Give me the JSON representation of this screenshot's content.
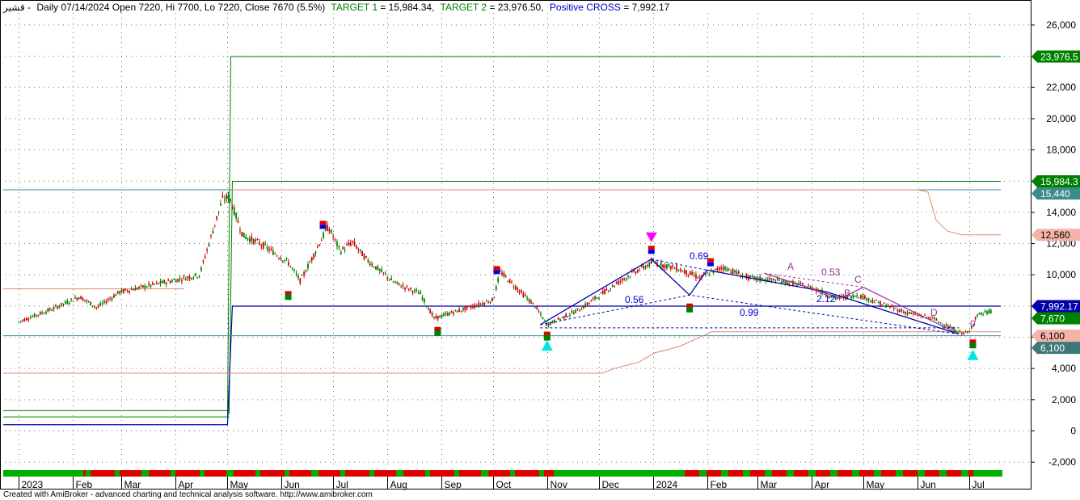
{
  "header": {
    "symbol": "قشير -",
    "info": "Daily 07/14/2024 Open 7220, Hi 7700, Lo 7220, Close 7670 (5.5%)",
    "target1_label": "TARGET 1",
    "target1_value": " = 15,984.34,",
    "target2_label": "TARGET 2",
    "target2_value": " = 23,976.50,",
    "cross_label": "Positive CROSS",
    "cross_value": "  = 7,992.17",
    "colors": {
      "info": "#000000",
      "target": "#008000",
      "cross": "#0000cc"
    }
  },
  "footer": "Created with AmiBroker - advanced charting and technical analysis software. http://www.amibroker.com",
  "chart_data": {
    "type": "line",
    "y_ticks": [
      "-2,000",
      "0",
      "2,000",
      "4,000",
      "6,000",
      "8,000",
      "10,000",
      "12,000",
      "14,000",
      "16,000",
      "18,000",
      "20,000",
      "22,000",
      "24,000",
      "26,000"
    ],
    "y_tick_values": [
      -2000,
      0,
      2000,
      4000,
      6000,
      8000,
      10000,
      12000,
      14000,
      16000,
      18000,
      20000,
      22000,
      24000,
      26000
    ],
    "ylim": [
      -3700,
      27600
    ],
    "x_ticks": [
      "2023",
      "Feb",
      "Mar",
      "Apr",
      "May",
      "Jun",
      "Jul",
      "Aug",
      "Sep",
      "Oct",
      "Nov",
      "Dec",
      "2024",
      "Feb",
      "Mar",
      "Apr",
      "May",
      "Jun",
      "Jul"
    ],
    "grid": true,
    "price": {
      "x": [
        "2023-01-01",
        "2023-01-20",
        "2023-02-05",
        "2023-02-15",
        "2023-02-28",
        "2023-04-15",
        "2023-04-28",
        "2023-05-02",
        "2023-05-10",
        "2023-05-20",
        "2023-06-05",
        "2023-06-12",
        "2023-06-28",
        "2023-07-05",
        "2023-07-12",
        "2023-07-20",
        "2023-08-05",
        "2023-08-20",
        "2023-08-28",
        "2023-09-05",
        "2023-09-20",
        "2023-10-01",
        "2023-10-05",
        "2023-10-25",
        "2023-11-01",
        "2023-11-20",
        "2023-12-05",
        "2023-12-20",
        "2024-01-01",
        "2024-01-15",
        "2024-01-28",
        "2024-02-10",
        "2024-02-25",
        "2024-03-15",
        "2024-04-01",
        "2024-04-15",
        "2024-04-28",
        "2024-05-10",
        "2024-05-25",
        "2024-06-10",
        "2024-06-25",
        "2024-07-01",
        "2024-07-05",
        "2024-07-14"
      ],
      "y": [
        7000,
        7800,
        8600,
        7900,
        8900,
        10000,
        14800,
        15000,
        12500,
        12000,
        10800,
        9600,
        13100,
        11500,
        12100,
        11000,
        9500,
        8800,
        7200,
        7500,
        8000,
        8400,
        10200,
        8000,
        6800,
        7800,
        9000,
        10100,
        10800,
        10400,
        9800,
        10500,
        9800,
        9600,
        9200,
        8500,
        8700,
        8200,
        7600,
        7200,
        6300,
        6300,
        7400,
        7670
      ]
    },
    "annotations": [
      "0.69",
      "0.56",
      "2.12",
      "0.99",
      "A",
      "0.53",
      "C",
      "B",
      "D",
      "0"
    ],
    "price_tags": [
      {
        "label": "23,976.5",
        "value": 23976.5,
        "bg": "#008000",
        "fg": "#ffffff"
      },
      {
        "label": "15,984.3",
        "value": 15984.3,
        "bg": "#008000",
        "fg": "#ffffff"
      },
      {
        "label": "15,440",
        "value": 15440,
        "bg": "#3c8c8c",
        "fg": "#ffffff"
      },
      {
        "label": "12,560",
        "value": 12560,
        "bg": "#f4b3a8",
        "fg": "#000000"
      },
      {
        "label": "7,992.17",
        "value": 7992.17,
        "bg": "#0000aa",
        "fg": "#ffffff"
      },
      {
        "label": "7,670",
        "value": 7670,
        "bg": "#008000",
        "fg": "#ffffff"
      },
      {
        "label": "6,100",
        "value": 6100,
        "bg": "#f4b3a8",
        "fg": "#000000"
      },
      {
        "label": "6,100",
        "value": 6100,
        "bg": "#3c7878",
        "fg": "#ffffff"
      }
    ],
    "levels": {
      "target1": 15984.34,
      "target2": 23976.5,
      "positive_cross": 7992.17,
      "upper_blue": 15440,
      "support": 6100,
      "stop": 12560
    }
  }
}
